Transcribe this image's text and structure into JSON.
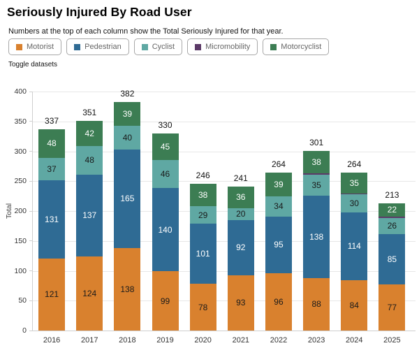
{
  "header": {
    "title": "Seriously Injured By Road User",
    "subtitle": "Numbers at the top of each column show the Total Seriously Injured for that year.",
    "toggle_label": "Toggle datasets"
  },
  "legend": {
    "items": [
      {
        "label": "Motorist",
        "color": "#D9812E"
      },
      {
        "label": "Pedestrian",
        "color": "#2F6B94"
      },
      {
        "label": "Cyclist",
        "color": "#5FA8A3"
      },
      {
        "label": "Micromobility",
        "color": "#5C3A68"
      },
      {
        "label": "Motorcyclist",
        "color": "#3C7D53"
      }
    ]
  },
  "chart_data": {
    "type": "bar",
    "stacked": true,
    "title": "Seriously Injured By Road User",
    "categories": [
      "2016",
      "2017",
      "2018",
      "2019",
      "2020",
      "2021",
      "2022",
      "2023",
      "2024",
      "2025"
    ],
    "series": [
      {
        "name": "Motorist",
        "color": "#D9812E",
        "label_color": "#1a1a1a",
        "values": [
          121,
          124,
          138,
          99,
          78,
          93,
          96,
          88,
          84,
          77
        ]
      },
      {
        "name": "Pedestrian",
        "color": "#2F6B94",
        "label_color": "#ffffff",
        "values": [
          131,
          137,
          165,
          140,
          101,
          92,
          95,
          138,
          114,
          85
        ]
      },
      {
        "name": "Cyclist",
        "color": "#5FA8A3",
        "label_color": "#1a1a1a",
        "values": [
          37,
          48,
          40,
          46,
          29,
          20,
          34,
          35,
          30,
          26
        ]
      },
      {
        "name": "Micromobility",
        "color": "#5C3A68",
        "label_color": "#ffffff",
        "values": [
          0,
          0,
          0,
          0,
          0,
          0,
          0,
          2,
          1,
          3
        ]
      },
      {
        "name": "Motorcyclist",
        "color": "#3C7D53",
        "label_color": "#ffffff",
        "values": [
          48,
          42,
          39,
          45,
          38,
          36,
          39,
          38,
          35,
          22
        ]
      }
    ],
    "totals": [
      337,
      351,
      382,
      330,
      246,
      241,
      264,
      301,
      264,
      213
    ],
    "xlabel": "",
    "ylabel": "Total",
    "ylim": [
      0,
      400
    ],
    "ytick_step": 50,
    "grid": true,
    "legend_position": "top"
  }
}
